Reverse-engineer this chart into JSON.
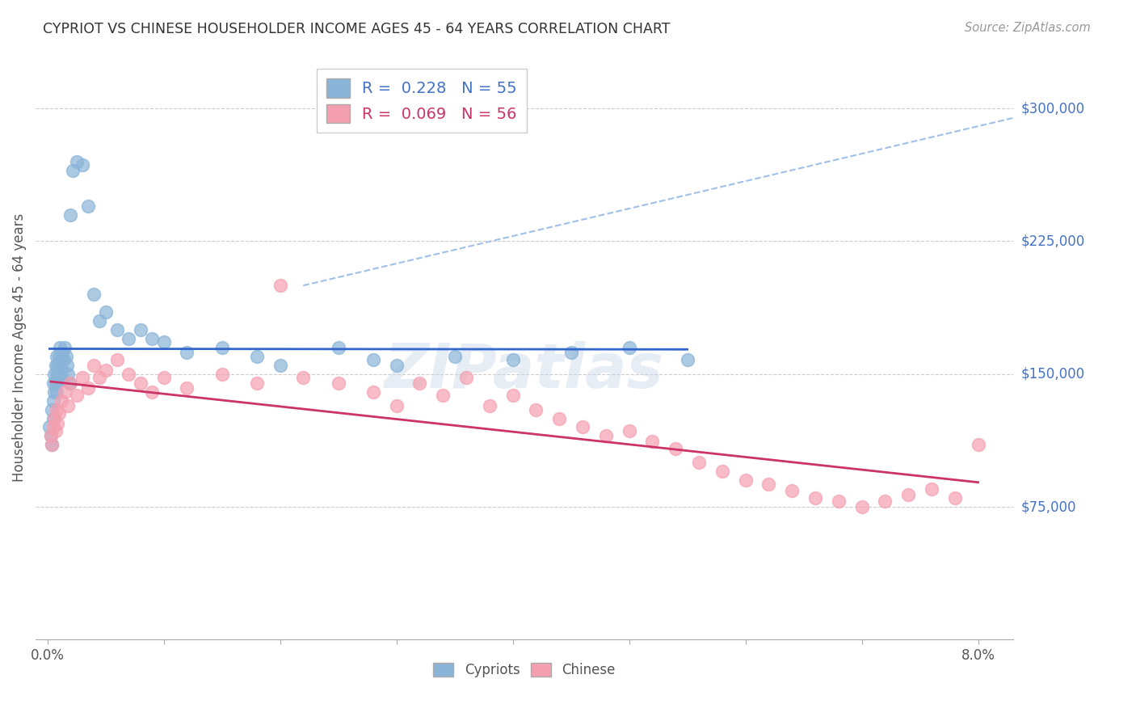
{
  "title": "CYPRIOT VS CHINESE HOUSEHOLDER INCOME AGES 45 - 64 YEARS CORRELATION CHART",
  "source_text": "Source: ZipAtlas.com",
  "ylabel": "Householder Income Ages 45 - 64 years",
  "ytick_labels": [
    "$75,000",
    "$150,000",
    "$225,000",
    "$300,000"
  ],
  "ytick_vals": [
    75000,
    150000,
    225000,
    300000
  ],
  "ylim": [
    0,
    330000
  ],
  "xlim": [
    -0.001,
    0.083
  ],
  "cypriot_color": "#8ab4d8",
  "chinese_color": "#f4a0b0",
  "trendline_cypriot_color": "#3366cc",
  "trendline_chinese_color": "#cc3366",
  "trendline_cypriot_dashed_color": "#a0c0e8",
  "background_color": "#ffffff",
  "grid_color": "#cccccc",
  "watermark_text": "ZIPatlas",
  "cypriot_x": [
    0.0002,
    0.0003,
    0.0004,
    0.0004,
    0.0005,
    0.0005,
    0.0005,
    0.0006,
    0.0006,
    0.0007,
    0.0007,
    0.0008,
    0.0008,
    0.0008,
    0.0009,
    0.0009,
    0.001,
    0.001,
    0.0011,
    0.0011,
    0.0012,
    0.0012,
    0.0013,
    0.0013,
    0.0014,
    0.0015,
    0.0016,
    0.0017,
    0.0018,
    0.0019,
    0.002,
    0.0022,
    0.0025,
    0.003,
    0.0035,
    0.004,
    0.0045,
    0.005,
    0.006,
    0.007,
    0.008,
    0.009,
    0.01,
    0.012,
    0.015,
    0.018,
    0.02,
    0.025,
    0.028,
    0.03,
    0.035,
    0.04,
    0.045,
    0.05,
    0.055
  ],
  "cypriot_y": [
    120000,
    115000,
    130000,
    110000,
    145000,
    135000,
    125000,
    150000,
    140000,
    155000,
    145000,
    160000,
    150000,
    140000,
    155000,
    145000,
    160000,
    150000,
    165000,
    155000,
    158000,
    148000,
    162000,
    152000,
    158000,
    165000,
    160000,
    155000,
    150000,
    145000,
    240000,
    265000,
    270000,
    268000,
    245000,
    195000,
    180000,
    185000,
    175000,
    170000,
    175000,
    170000,
    168000,
    162000,
    165000,
    160000,
    155000,
    165000,
    158000,
    155000,
    160000,
    158000,
    162000,
    165000,
    158000
  ],
  "chinese_x": [
    0.0003,
    0.0004,
    0.0005,
    0.0006,
    0.0007,
    0.0008,
    0.0009,
    0.001,
    0.0012,
    0.0015,
    0.0018,
    0.002,
    0.0025,
    0.003,
    0.0035,
    0.004,
    0.0045,
    0.005,
    0.006,
    0.007,
    0.008,
    0.009,
    0.01,
    0.012,
    0.015,
    0.018,
    0.02,
    0.022,
    0.025,
    0.028,
    0.03,
    0.032,
    0.034,
    0.036,
    0.038,
    0.04,
    0.042,
    0.044,
    0.046,
    0.048,
    0.05,
    0.052,
    0.054,
    0.056,
    0.058,
    0.06,
    0.062,
    0.064,
    0.066,
    0.068,
    0.07,
    0.072,
    0.074,
    0.076,
    0.078,
    0.08
  ],
  "chinese_y": [
    115000,
    110000,
    120000,
    125000,
    118000,
    130000,
    122000,
    128000,
    135000,
    140000,
    132000,
    145000,
    138000,
    148000,
    142000,
    155000,
    148000,
    152000,
    158000,
    150000,
    145000,
    140000,
    148000,
    142000,
    150000,
    145000,
    200000,
    148000,
    145000,
    140000,
    132000,
    145000,
    138000,
    148000,
    132000,
    138000,
    130000,
    125000,
    120000,
    115000,
    118000,
    112000,
    108000,
    100000,
    95000,
    90000,
    88000,
    84000,
    80000,
    78000,
    75000,
    78000,
    82000,
    85000,
    80000,
    110000
  ]
}
